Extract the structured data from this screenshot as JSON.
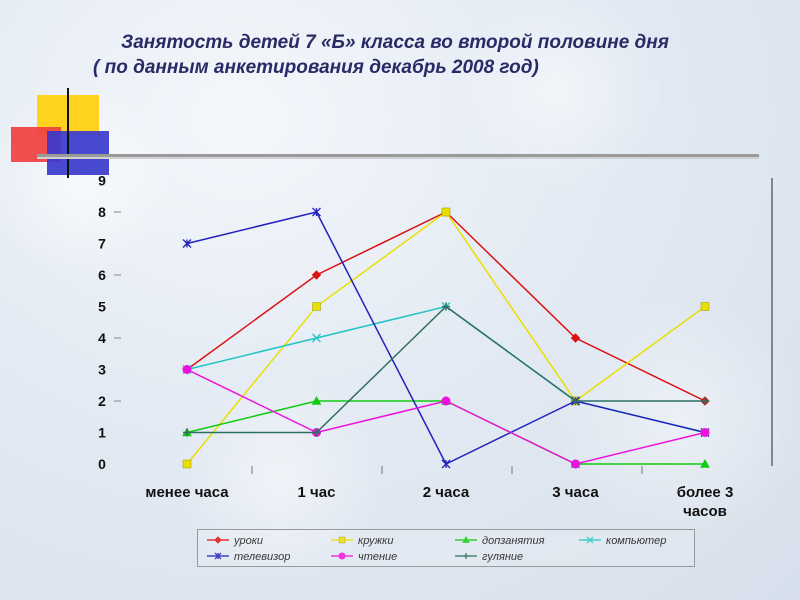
{
  "title": {
    "line1": "Занятость детей 7 «Б» класса во второй половине дня",
    "line2": "( по данным анкетирования декабрь 2008 год)"
  },
  "colors": {
    "title": "#2a2a66",
    "deco_yellow": "#ffd21e",
    "deco_red": "#f03c3c",
    "deco_blue": "#3a3acc"
  },
  "chart_data": {
    "type": "line",
    "title": "",
    "xlabel": "",
    "ylabel": "",
    "ylim": [
      0,
      9
    ],
    "yticks": [
      "0",
      "1",
      "2",
      "3",
      "4",
      "5",
      "6",
      "7",
      "8",
      "9"
    ],
    "categories": [
      [
        "менее часа"
      ],
      [
        "1 час"
      ],
      [
        "2 часа"
      ],
      [
        "3 часа"
      ],
      [
        "более 3",
        "часов"
      ]
    ],
    "grid": false,
    "legend_position": "bottom",
    "series": [
      {
        "name": "уроки",
        "values": [
          3,
          6,
          8,
          4,
          2
        ],
        "color": "#dd1111",
        "marker": "diamond"
      },
      {
        "name": "кружки",
        "values": [
          0,
          5,
          8,
          2,
          5
        ],
        "color": "#e8e000",
        "marker": "square"
      },
      {
        "name": "допзанятия",
        "values": [
          1,
          2,
          2,
          0,
          0
        ],
        "color": "#11cc11",
        "marker": "triangle"
      },
      {
        "name": "компьютер",
        "values": [
          3,
          4,
          5,
          2,
          1
        ],
        "color": "#22c4c4",
        "marker": "x"
      },
      {
        "name": "телевизор",
        "values": [
          7,
          8,
          0,
          2,
          1
        ],
        "color": "#2222bb",
        "marker": "star"
      },
      {
        "name": "чтение",
        "values": [
          3,
          1,
          2,
          0,
          1
        ],
        "color": "#ee11dd",
        "marker": "circle"
      },
      {
        "name": "гуляние",
        "values": [
          1,
          1,
          5,
          2,
          2
        ],
        "color": "#2f6f62",
        "marker": "plus"
      }
    ]
  }
}
